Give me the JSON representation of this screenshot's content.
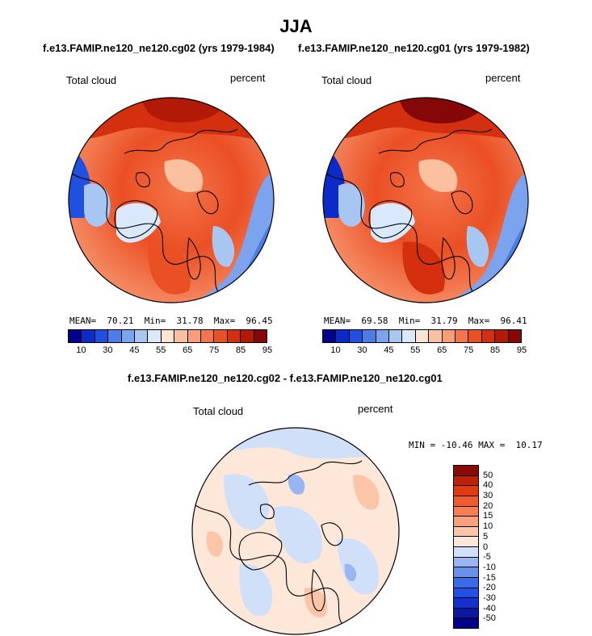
{
  "title": "JJA",
  "panels": [
    {
      "name": "cg02",
      "subtitle": "f.e13.FAMIP.ne120_ne120.cg02 (yrs 1979-1984)",
      "variable": "Total cloud",
      "units": "percent",
      "stats": "MEAN=  70.21  Min=  31.78  Max=  96.45"
    },
    {
      "name": "cg01",
      "subtitle": "f.e13.FAMIP.ne120_ne120.cg01 (yrs 1979-1982)",
      "variable": "Total cloud",
      "units": "percent",
      "stats": "MEAN=  69.58  Min=  31.79  Max=  96.41"
    }
  ],
  "diff": {
    "subtitle": "f.e13.FAMIP.ne120_ne120.cg02 - f.e13.FAMIP.ne120_ne120.cg01",
    "variable": "Total cloud",
    "units": "percent",
    "stats": "MIN = -10.46 MAX =  10.17"
  },
  "colors": {
    "abs_scale": [
      "#00008b",
      "#0a2bc8",
      "#2050e0",
      "#4a7ee6",
      "#7ba3ee",
      "#a8c6f2",
      "#d9e9fb",
      "#fde3d2",
      "#fbc0a0",
      "#f89d76",
      "#f4754a",
      "#eb4f24",
      "#d4300f",
      "#b21a07",
      "#850707"
    ],
    "diff_scale": [
      "#00008b",
      "#0a1aa0",
      "#1530d0",
      "#2050e6",
      "#3a6ae8",
      "#6a90ee",
      "#98b6f2",
      "#cfe0f8",
      "#fde7d8",
      "#fbc6a8",
      "#f9a07c",
      "#f67e55",
      "#f25a2c",
      "#e03a14",
      "#bf2008",
      "#8b0a04"
    ],
    "land_outline": "#000000"
  },
  "chart_data": [
    {
      "type": "heatmap",
      "projection": "north polar stereographic",
      "title": "f.e13.FAMIP.ne120_ne120.cg02 (yrs 1979-1984)",
      "variable": "Total cloud",
      "units": "percent",
      "mean": 70.21,
      "min": 31.78,
      "max": 96.45,
      "colorbar_ticks": [
        10,
        30,
        45,
        55,
        65,
        75,
        85,
        95
      ]
    },
    {
      "type": "heatmap",
      "projection": "north polar stereographic",
      "title": "f.e13.FAMIP.ne120_ne120.cg01 (yrs 1979-1982)",
      "variable": "Total cloud",
      "units": "percent",
      "mean": 69.58,
      "min": 31.79,
      "max": 96.41,
      "colorbar_ticks": [
        10,
        30,
        45,
        55,
        65,
        75,
        85,
        95
      ]
    },
    {
      "type": "heatmap",
      "projection": "north polar stereographic",
      "title": "f.e13.FAMIP.ne120_ne120.cg02 - f.e13.FAMIP.ne120_ne120.cg01",
      "variable": "Total cloud",
      "units": "percent",
      "min": -10.46,
      "max": 10.17,
      "colorbar_ticks": [
        50,
        40,
        30,
        20,
        15,
        10,
        5,
        0,
        -5,
        -10,
        -15,
        -20,
        -30,
        -40,
        -50
      ]
    }
  ]
}
